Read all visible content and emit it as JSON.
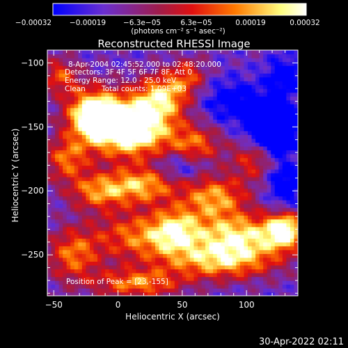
{
  "chart_data": {
    "type": "heatmap",
    "title": "Reconstructed RHESSI Image",
    "xlabel": "Heliocentric X (arcsec)",
    "ylabel": "Heliocentric Y (arcsec)",
    "xlim": [
      -55,
      140
    ],
    "ylim": [
      -282,
      -90
    ],
    "x_ticks": [
      -50,
      0,
      50,
      100
    ],
    "x_tick_labels": [
      "−50",
      "0",
      "50",
      "100"
    ],
    "y_ticks": [
      -100,
      -150,
      -200,
      -250
    ],
    "y_tick_labels": [
      "−100",
      "−150",
      "−200",
      "−250"
    ],
    "colorbar": {
      "range": [
        -0.00032,
        0.00032
      ],
      "tick_labels": [
        "−0.00032",
        "−0.00019",
        "−6.3e−05",
        "6.3e−05",
        "0.00019",
        "0.00032"
      ],
      "units": "(photons cm⁻² s⁻¹ asec⁻²)",
      "colors": [
        "#0000ff",
        "#6a2fd0",
        "#a01c4a",
        "#e01010",
        "#ff7a00",
        "#ffff80",
        "#ffffff"
      ]
    },
    "peak": [
      23,
      -155
    ],
    "blobs": [
      {
        "x": 10,
        "y": -150,
        "sx": 22,
        "sy": 16,
        "a": 1.0
      },
      {
        "x": -20,
        "y": -140,
        "sx": 14,
        "sy": 14,
        "a": 0.75
      },
      {
        "x": 35,
        "y": -125,
        "sx": 14,
        "sy": 12,
        "a": 0.55
      },
      {
        "x": -40,
        "y": -175,
        "sx": 12,
        "sy": 12,
        "a": 0.45
      },
      {
        "x": -15,
        "y": -200,
        "sx": 16,
        "sy": 10,
        "a": 0.5
      },
      {
        "x": 20,
        "y": -195,
        "sx": 18,
        "sy": 10,
        "a": 0.55
      },
      {
        "x": 60,
        "y": -165,
        "sx": 14,
        "sy": 12,
        "a": 0.45
      },
      {
        "x": 75,
        "y": -205,
        "sx": 18,
        "sy": 12,
        "a": 0.55
      },
      {
        "x": 95,
        "y": -235,
        "sx": 26,
        "sy": 12,
        "a": 0.65
      },
      {
        "x": 130,
        "y": -230,
        "sx": 10,
        "sy": 10,
        "a": 0.7
      },
      {
        "x": 80,
        "y": -255,
        "sx": 30,
        "sy": 10,
        "a": 0.55
      },
      {
        "x": 20,
        "y": -235,
        "sx": 28,
        "sy": 14,
        "a": 0.5
      },
      {
        "x": -35,
        "y": -250,
        "sx": 14,
        "sy": 14,
        "a": 0.45
      },
      {
        "x": 15,
        "y": -272,
        "sx": 24,
        "sy": 8,
        "a": 0.5
      },
      {
        "x": 45,
        "y": -230,
        "sx": 12,
        "sy": 12,
        "a": 0.4
      },
      {
        "x": 105,
        "y": -175,
        "sx": 12,
        "sy": 12,
        "a": 0.35
      },
      {
        "x": -45,
        "y": -110,
        "sx": 10,
        "sy": 10,
        "a": 0.4
      },
      {
        "x": 55,
        "y": -110,
        "sx": 10,
        "sy": 10,
        "a": 0.35
      },
      {
        "x": 120,
        "y": -150,
        "sx": 12,
        "sy": 12,
        "a": -0.9
      },
      {
        "x": 130,
        "y": -110,
        "sx": 10,
        "sy": 10,
        "a": -0.35
      },
      {
        "x": 90,
        "y": -130,
        "sx": 18,
        "sy": 12,
        "a": -0.3
      },
      {
        "x": 50,
        "y": -180,
        "sx": 14,
        "sy": 8,
        "a": -0.3
      },
      {
        "x": 130,
        "y": -195,
        "sx": 10,
        "sy": 14,
        "a": -0.35
      }
    ]
  },
  "annotations": {
    "time_range": "8-Apr-2004 02:45:52.000 to 02:48:20.000",
    "detectors": "Detectors: 3F 4F 5F 6F 7F 8F, Att 0",
    "energy": "Energy Range: 12.0 - 25.0 keV",
    "method": "Clean",
    "counts": "Total counts: 1.09E+03",
    "peak_text": "Position of Peak = [23,-155]"
  },
  "footer": {
    "timestamp": "30-Apr-2022 02:11"
  }
}
